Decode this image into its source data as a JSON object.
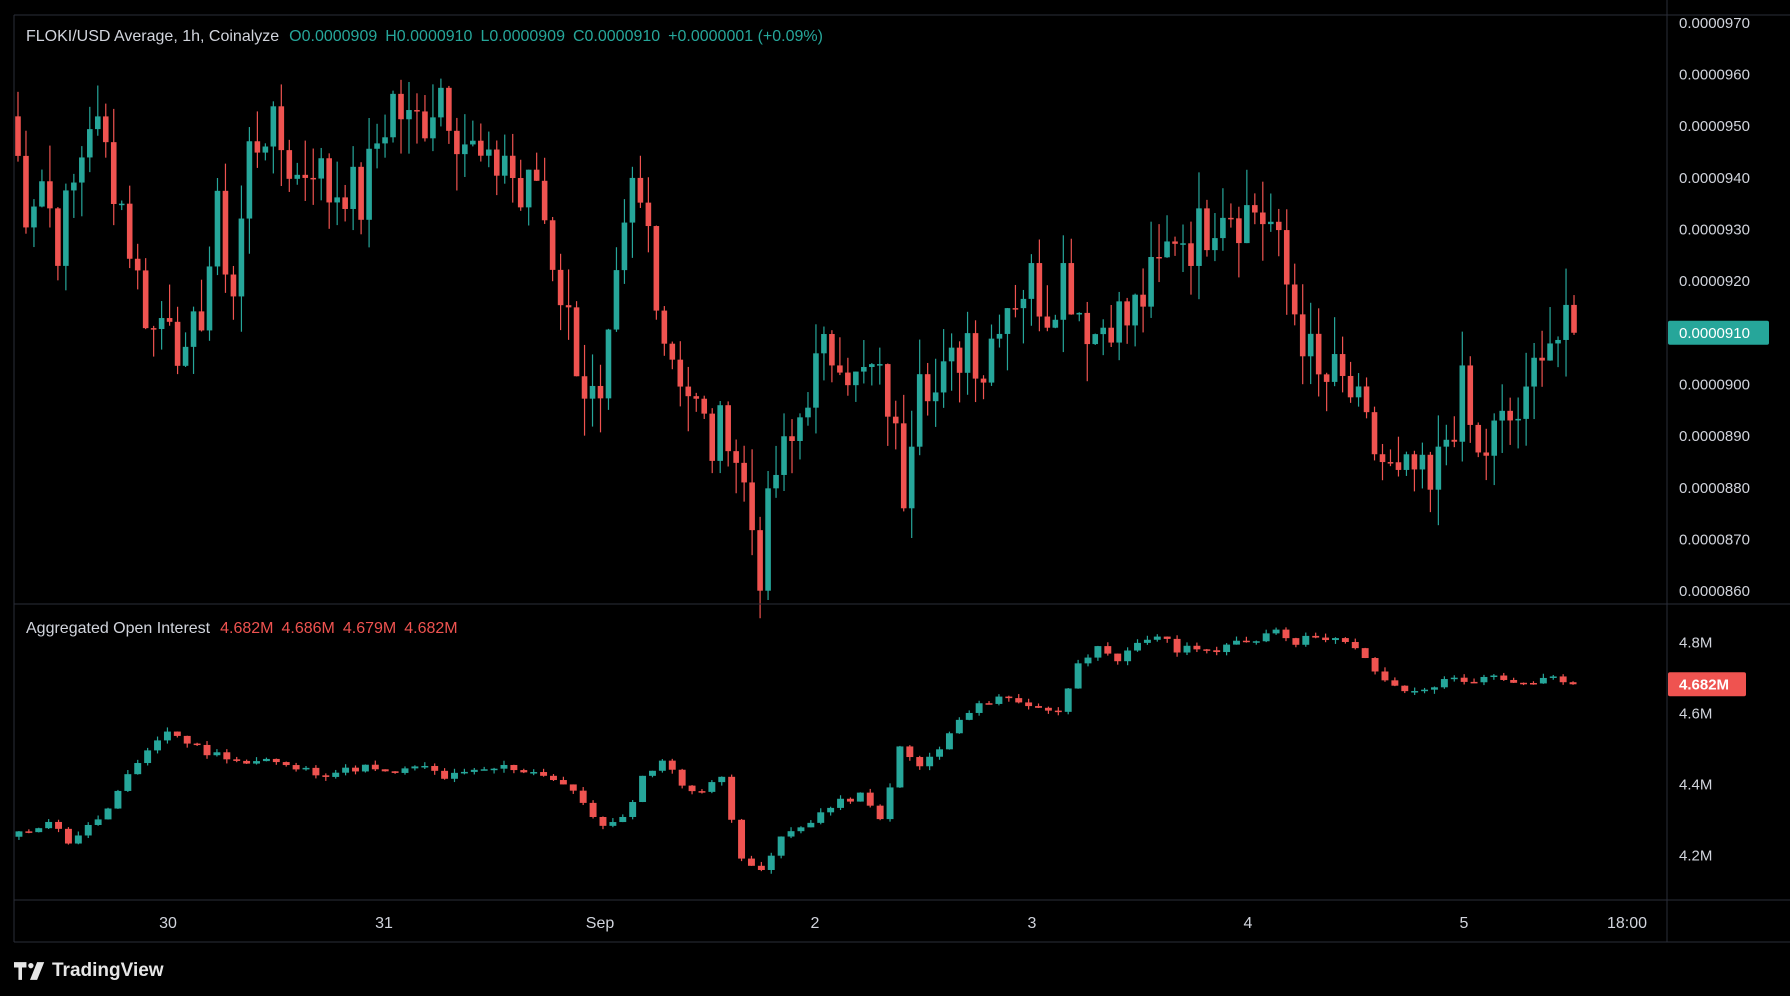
{
  "price_legend": {
    "symbol": "FLOKI/USD Average, 1h, Coinalyze",
    "open": "O0.0000909",
    "high": "H0.0000910",
    "low": "L0.0000909",
    "close": "C0.0000910",
    "change": "+0.0000001 (+0.09%)"
  },
  "oi_legend": {
    "title": "Aggregated Open Interest",
    "open": "4.682M",
    "high": "4.686M",
    "low": "4.679M",
    "close": "4.682M"
  },
  "brand": "TradingView",
  "colors": {
    "up": "#26a69a",
    "down": "#ef5350",
    "background": "#000000",
    "grid_divider": "#2a2e39",
    "axis_text": "#d1d4dc"
  },
  "chart_data": [
    {
      "type": "candlestick",
      "title": "FLOKI/USD Average, 1h, Coinalyze",
      "y_ticks": [
        "0.0000970",
        "0.0000960",
        "0.0000950",
        "0.0000940",
        "0.0000930",
        "0.0000920",
        "0.0000910",
        "0.0000900",
        "0.0000890",
        "0.0000880",
        "0.0000870",
        "0.0000860"
      ],
      "ylim": [
        8.575e-05,
        9.715e-05
      ],
      "current_price_label": "0.0000910",
      "x_ticks": [
        "30",
        "31",
        "Sep",
        "2",
        "3",
        "4",
        "5",
        "18:00"
      ],
      "close_path": [
        9.52e-05,
        9.35e-05,
        9.4e-05,
        9.28e-05,
        9.38e-05,
        9.52e-05,
        9.45e-05,
        9.35e-05,
        9.2e-05,
        9.1e-05,
        9.16e-05,
        9.02e-05,
        9.15e-05,
        9.32e-05,
        9.18e-05,
        9.45e-05,
        9.5e-05,
        9.46e-05,
        9.4e-05,
        9.44e-05,
        9.37e-05,
        9.39e-05,
        9.35e-05,
        9.47e-05,
        9.55e-05,
        9.5e-05,
        9.52e-05,
        9.58e-05,
        9.5e-05,
        9.45e-05,
        9.4e-05,
        9.45e-05,
        9.35e-05,
        9.4e-05,
        9.25e-05,
        9.12e-05,
        9e-05,
        8.93e-05,
        9.17e-05,
        9.37e-05,
        9.3e-05,
        9.1e-05,
        9.03e-05,
        8.95e-05,
        8.88e-05,
        8.93e-05,
        8.8e-05,
        8.65e-05,
        8.83e-05,
        8.88e-05,
        9e-05,
        9.05e-05,
        9.08e-05,
        9e-05,
        9.02e-05,
        8.97e-05,
        8.8e-05,
        9.07e-05,
        8.98e-05,
        9.03e-05,
        9.1e-05,
        9.03e-05,
        9.15e-05,
        9.18e-05,
        9.2e-05,
        9.15e-05,
        9.22e-05,
        9.15e-05,
        9.1e-05,
        9.14e-05,
        9.12e-05,
        9.17e-05,
        9.22e-05,
        9.3e-05,
        9.28e-05,
        9.31e-05,
        9.36e-05,
        9.33e-05,
        9.34e-05,
        9.31e-05,
        9.19e-05,
        9.1e-05,
        9e-05,
        9.01e-05,
        8.98e-05,
        8.9e-05,
        8.85e-05,
        8.8e-05,
        8.83e-05,
        8.78e-05,
        8.9e-05,
        8.98e-05,
        8.85e-05,
        8.9e-05,
        8.93e-05,
        8.95e-05,
        9.1e-05,
        9.09e-05,
        9.1e-05
      ]
    },
    {
      "type": "candlestick",
      "title": "Aggregated Open Interest",
      "y_ticks": [
        "4.8M",
        "4.6M",
        "4.4M",
        "4.2M"
      ],
      "ylim": [
        4.075,
        4.905
      ],
      "current_value_label": "4.682M",
      "close_path": [
        4.25,
        4.27,
        4.3,
        4.24,
        4.28,
        4.33,
        4.42,
        4.5,
        4.55,
        4.52,
        4.49,
        4.48,
        4.46,
        4.47,
        4.45,
        4.44,
        4.43,
        4.44,
        4.45,
        4.43,
        4.44,
        4.45,
        4.42,
        4.43,
        4.44,
        4.45,
        4.44,
        4.43,
        4.4,
        4.35,
        4.28,
        4.3,
        4.42,
        4.47,
        4.4,
        4.38,
        4.42,
        4.2,
        4.15,
        4.25,
        4.28,
        4.32,
        4.35,
        4.37,
        4.3,
        4.5,
        4.45,
        4.5,
        4.58,
        4.62,
        4.65,
        4.63,
        4.62,
        4.6,
        4.75,
        4.78,
        4.74,
        4.8,
        4.82,
        4.78,
        4.79,
        4.77,
        4.8,
        4.81,
        4.84,
        4.8,
        4.82,
        4.81,
        4.78,
        4.72,
        4.67,
        4.66,
        4.68,
        4.7,
        4.69,
        4.7,
        4.68,
        4.69,
        4.7,
        4.682
      ]
    }
  ]
}
